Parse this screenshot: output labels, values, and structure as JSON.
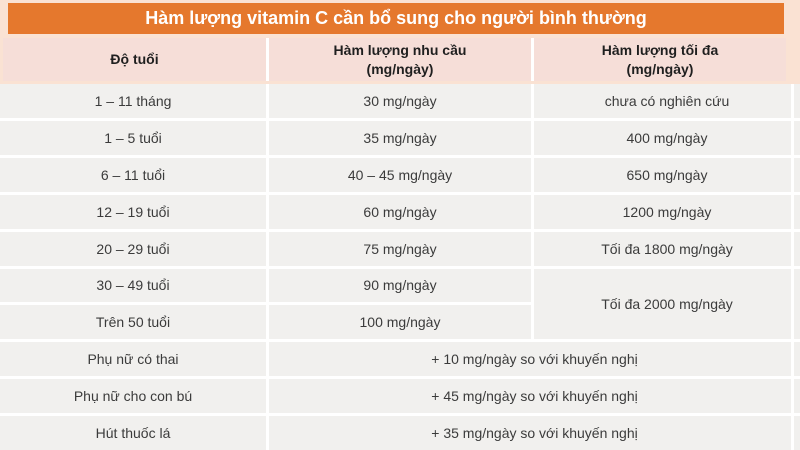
{
  "colors": {
    "accent_orange": "#E5782D",
    "title_text": "#FFFFFF",
    "page_bg": "#FAE2D3",
    "header_row_bg": "#F6DED8",
    "data_row_bg": "#F1F0EE",
    "divider_white": "#FFFFFF",
    "header_text": "#1F1F1F",
    "body_text": "#3B3B3B"
  },
  "chart_data": {
    "type": "table",
    "title": "Hàm lượng vitamin C cần bổ sung cho người bình thường",
    "columns": [
      {
        "label": "Độ tuổi",
        "sub": ""
      },
      {
        "label": "Hàm lượng nhu cầu",
        "sub": "(mg/ngày)"
      },
      {
        "label": "Hàm lượng tối đa",
        "sub": "(mg/ngày)"
      }
    ],
    "rows": [
      {
        "age": "1 – 11 tháng",
        "need": "30 mg/ngày",
        "max": "chưa có nghiên cứu"
      },
      {
        "age": "1 – 5 tuổi",
        "need": "35 mg/ngày",
        "max": "400 mg/ngày"
      },
      {
        "age": "6 – 11 tuổi",
        "need": "40 – 45 mg/ngày",
        "max": "650 mg/ngày"
      },
      {
        "age": "12 – 19 tuổi",
        "need": "60 mg/ngày",
        "max": "1200 mg/ngày"
      },
      {
        "age": "20 – 29 tuổi",
        "need": "75 mg/ngày",
        "max": "Tối đa 1800 mg/ngày"
      },
      {
        "age": "30 – 49 tuổi",
        "need": "90 mg/ngày",
        "max": "Tối đa 2000 mg/ngày",
        "max_spans_next_row": true
      },
      {
        "age": "Trên 50 tuổi",
        "need": "100 mg/ngày",
        "max": null
      },
      {
        "age": "Phụ nữ có thai",
        "need_and_max_merged": "+ 10 mg/ngày so với khuyến nghị"
      },
      {
        "age": "Phụ nữ cho con bú",
        "need_and_max_merged": "+ 45 mg/ngày so với khuyến nghị"
      },
      {
        "age": "Hút thuốc lá",
        "need_and_max_merged": "+ 35 mg/ngày so với khuyến nghị"
      }
    ]
  }
}
